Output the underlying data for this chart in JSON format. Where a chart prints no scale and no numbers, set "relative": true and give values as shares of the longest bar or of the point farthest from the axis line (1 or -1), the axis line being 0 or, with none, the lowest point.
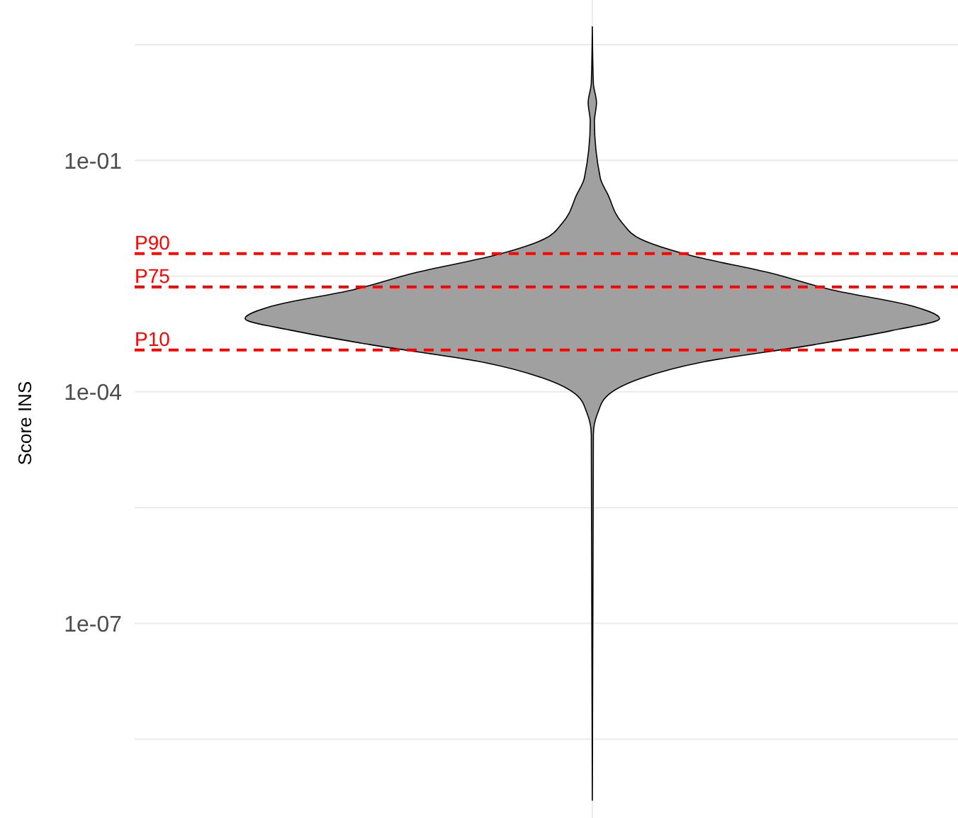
{
  "chart_data": {
    "type": "area",
    "orientation": "horizontal",
    "relative": true,
    "ylabel": "Score INS",
    "log": "y",
    "ylim": [
      3e-10,
      12
    ],
    "yticks": [
      {
        "value": 3.162,
        "label": null
      },
      {
        "value": 0.1,
        "label": "1e-01"
      },
      {
        "value": 0.003162,
        "label": null
      },
      {
        "value": 0.0001,
        "label": "1e-04"
      },
      {
        "value": 3.162e-06,
        "label": null
      },
      {
        "value": 1e-07,
        "label": "1e-07"
      },
      {
        "value": 3.162e-09,
        "label": null
      }
    ],
    "grid": true,
    "color": "#a0a0a0",
    "x": [
      5.4,
      1,
      0.56,
      0.32,
      0.059,
      0.036,
      0.0155,
      0.0095,
      0.0059,
      0.0035,
      0.0021,
      0.0013,
      0.00089,
      0.00062,
      0.00041,
      0.00024,
      0.00015,
      9.1e-05,
      5.4e-05,
      2.8e-05,
      5.1e-10
    ],
    "values": [
      0,
      0.003,
      0.012,
      0.006,
      0.023,
      0.045,
      0.086,
      0.14,
      0.28,
      0.51,
      0.69,
      0.92,
      1,
      0.86,
      0.64,
      0.31,
      0.14,
      0.045,
      0.016,
      0.003,
      0
    ],
    "ref_lines": [
      {
        "axis": "y",
        "value": 0.0062,
        "label": "P90",
        "color": "#ff0000",
        "line_style": "dashed"
      },
      {
        "axis": "y",
        "value": 0.0023,
        "label": "P75",
        "color": "#ff0000",
        "line_style": "dashed"
      },
      {
        "axis": "y",
        "value": 0.00035,
        "label": "P10",
        "color": "#ff0000",
        "line_style": "dashed"
      }
    ]
  }
}
